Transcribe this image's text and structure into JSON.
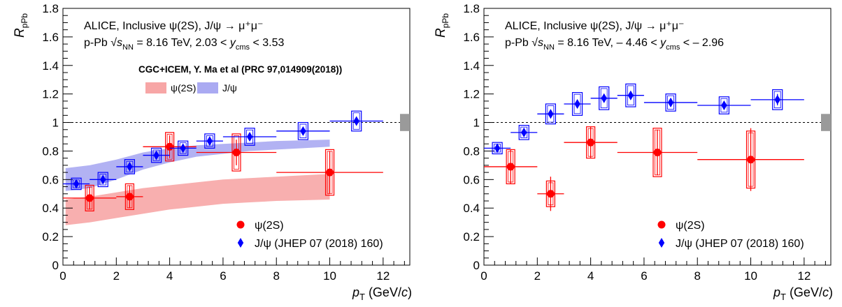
{
  "chart_data": [
    {
      "type": "scatter",
      "ylabel_main": "R",
      "ylabel_sub": "pPb",
      "xlabel_main": "p",
      "xlabel_sub": "T",
      "xlabel_unit": "(GeV/c)",
      "xlim": [
        0,
        13
      ],
      "ylim": [
        0,
        1.8
      ],
      "xticks": [
        0,
        2,
        4,
        6,
        8,
        10,
        12
      ],
      "yticks": [
        0,
        0.2,
        0.4,
        0.6,
        0.8,
        1,
        1.2,
        1.4,
        1.6,
        1.8
      ],
      "reference_line": 1,
      "global_uncertainty": [
        0.94,
        1.06
      ],
      "annotation_line1": "ALICE, Inclusive ψ(2S), J/ψ → μ⁺μ⁻",
      "annotation_line2": "p-Pb √sNN = 8.16 TeV, 2.03 < ycms < 3.53",
      "model_title": "CGC+ICEM, Y. Ma et al (PRC 97,014909(2018))",
      "model_bands": [
        {
          "name": "ψ(2S)",
          "color": "#f7a6a6",
          "x": [
            0.1,
            1,
            2,
            3,
            4,
            5,
            6,
            7,
            8,
            9,
            10
          ],
          "low": [
            0.28,
            0.3,
            0.33,
            0.36,
            0.39,
            0.41,
            0.43,
            0.44,
            0.45,
            0.455,
            0.46
          ],
          "high": [
            0.46,
            0.48,
            0.51,
            0.54,
            0.56,
            0.58,
            0.6,
            0.61,
            0.62,
            0.63,
            0.64
          ]
        },
        {
          "name": "J/ψ",
          "color": "#aaaaf2",
          "x": [
            0.1,
            1,
            2,
            3,
            4,
            5,
            6,
            7,
            8,
            9,
            10
          ],
          "low": [
            0.52,
            0.54,
            0.6,
            0.67,
            0.72,
            0.76,
            0.78,
            0.8,
            0.81,
            0.82,
            0.83
          ],
          "high": [
            0.68,
            0.7,
            0.74,
            0.79,
            0.82,
            0.84,
            0.85,
            0.86,
            0.87,
            0.875,
            0.88
          ]
        }
      ],
      "series": [
        {
          "name": "ψ(2S)",
          "color": "#ff0000",
          "marker": "circle",
          "x": [
            1,
            2.5,
            4,
            6.5,
            10
          ],
          "xlow": [
            0,
            2,
            3,
            5,
            8
          ],
          "xhigh": [
            2,
            3,
            5,
            8,
            12
          ],
          "y": [
            0.47,
            0.48,
            0.83,
            0.79,
            0.65
          ],
          "stat": [
            0.08,
            0.08,
            0.08,
            0.09,
            0.15
          ],
          "syst": [
            0.09,
            0.09,
            0.1,
            0.13,
            0.16
          ]
        },
        {
          "name": "J/ψ (JHEP 07 (2018) 160)",
          "color": "#0000ff",
          "marker": "diamond",
          "x": [
            0.5,
            1.5,
            2.5,
            3.5,
            4.5,
            5.5,
            7,
            9,
            11
          ],
          "xlow": [
            0,
            1,
            2,
            3,
            4,
            5,
            6,
            8,
            10
          ],
          "xhigh": [
            1,
            2,
            3,
            4,
            5,
            6,
            8,
            10,
            12
          ],
          "y": [
            0.57,
            0.6,
            0.69,
            0.77,
            0.82,
            0.87,
            0.9,
            0.94,
            1.01
          ],
          "stat": [
            0.02,
            0.02,
            0.02,
            0.02,
            0.02,
            0.02,
            0.02,
            0.02,
            0.03
          ],
          "syst": [
            0.04,
            0.05,
            0.05,
            0.05,
            0.05,
            0.05,
            0.06,
            0.06,
            0.07
          ]
        }
      ],
      "legend": {
        "position": "bottom-right"
      }
    },
    {
      "type": "scatter",
      "ylabel_main": "R",
      "ylabel_sub": "pPb",
      "xlabel_main": "p",
      "xlabel_sub": "T",
      "xlabel_unit": "(GeV/c)",
      "xlim": [
        0,
        13
      ],
      "ylim": [
        0,
        1.8
      ],
      "xticks": [
        0,
        2,
        4,
        6,
        8,
        10,
        12
      ],
      "yticks": [
        0,
        0.2,
        0.4,
        0.6,
        0.8,
        1,
        1.2,
        1.4,
        1.6,
        1.8
      ],
      "reference_line": 1,
      "global_uncertainty": [
        0.94,
        1.06
      ],
      "annotation_line1": "ALICE, Inclusive ψ(2S), J/ψ → μ⁺μ⁻",
      "annotation_line2": "p-Pb √sNN = 8.16 TeV, – 4.46 < ycms < – 2.96",
      "series": [
        {
          "name": "ψ(2S)",
          "color": "#ff0000",
          "marker": "circle",
          "x": [
            1,
            2.5,
            4,
            6.5,
            10
          ],
          "xlow": [
            0,
            2,
            3,
            5,
            8
          ],
          "xhigh": [
            2,
            3,
            5,
            8,
            12
          ],
          "y": [
            0.69,
            0.5,
            0.86,
            0.79,
            0.74
          ],
          "stat": [
            0.12,
            0.12,
            0.11,
            0.16,
            0.22
          ],
          "syst": [
            0.12,
            0.09,
            0.11,
            0.17,
            0.2
          ]
        },
        {
          "name": "J/ψ (JHEP 07 (2018) 160)",
          "color": "#0000ff",
          "marker": "diamond",
          "x": [
            0.5,
            1.5,
            2.5,
            3.5,
            4.5,
            5.5,
            7,
            9,
            11
          ],
          "xlow": [
            0,
            1,
            2,
            3,
            4,
            5,
            6,
            8,
            10
          ],
          "xhigh": [
            1,
            2,
            3,
            4,
            5,
            6,
            8,
            10,
            12
          ],
          "y": [
            0.82,
            0.93,
            1.06,
            1.13,
            1.17,
            1.19,
            1.14,
            1.12,
            1.16
          ],
          "stat": [
            0.02,
            0.02,
            0.03,
            0.03,
            0.03,
            0.03,
            0.03,
            0.03,
            0.04
          ],
          "syst": [
            0.04,
            0.05,
            0.07,
            0.08,
            0.08,
            0.08,
            0.06,
            0.06,
            0.07
          ]
        }
      ],
      "legend": {
        "position": "bottom-right"
      }
    }
  ]
}
